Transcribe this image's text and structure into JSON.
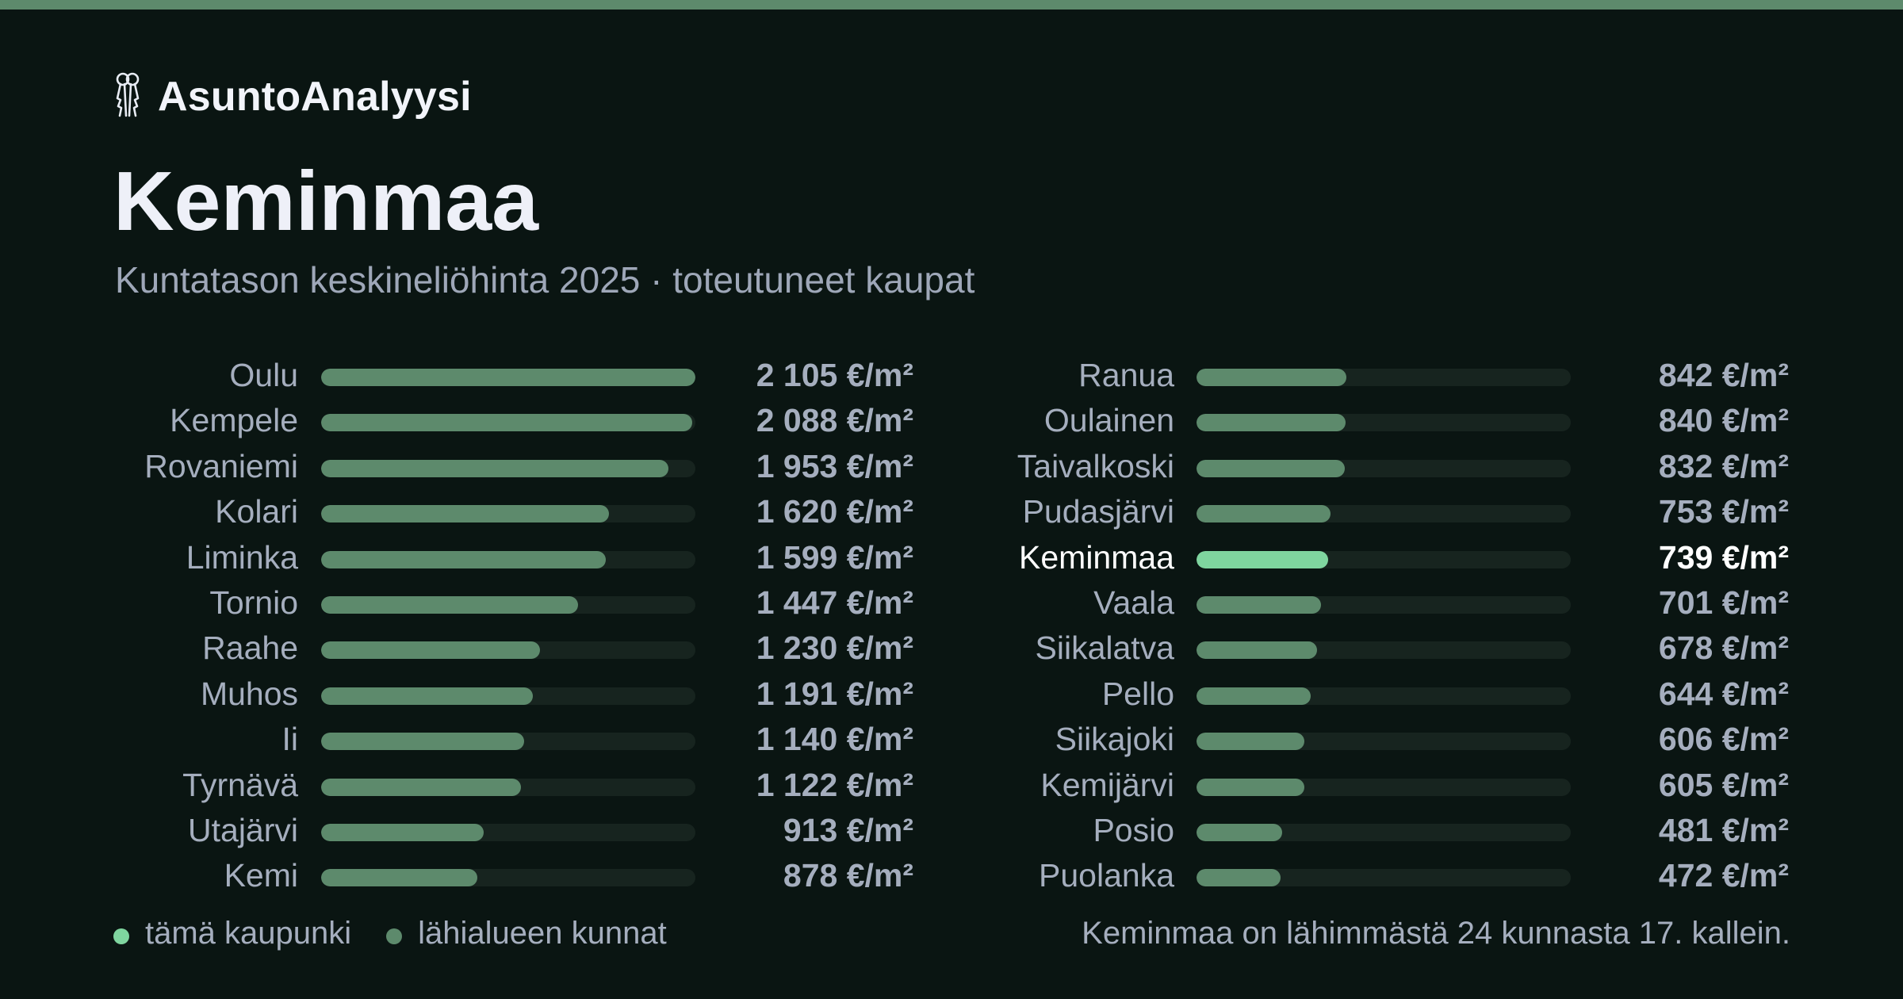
{
  "brand": {
    "name": "AsuntoAnalyysi",
    "icon": "keys-icon"
  },
  "header": {
    "title": "Keminmaa",
    "subtitle": "Kuntatason keskineliöhinta 2025 · toteutuneet kaupat"
  },
  "colors": {
    "accent": "#7fd59f",
    "bar": "#5d8a6c",
    "track": "#17241f",
    "background": "#0a1512",
    "topbar": "#5d8a6c"
  },
  "chart_data": {
    "type": "bar",
    "orientation": "horizontal",
    "unit": "€/m²",
    "max": 2105,
    "highlight": "Keminmaa",
    "categories": [
      "Oulu",
      "Kempele",
      "Rovaniemi",
      "Kolari",
      "Liminka",
      "Tornio",
      "Raahe",
      "Muhos",
      "Ii",
      "Tyrnävä",
      "Utajärvi",
      "Kemi",
      "Ranua",
      "Oulainen",
      "Taivalkoski",
      "Pudasjärvi",
      "Keminmaa",
      "Vaala",
      "Siikalatva",
      "Pello",
      "Siikajoki",
      "Kemijärvi",
      "Posio",
      "Puolanka"
    ],
    "values": [
      2105,
      2088,
      1953,
      1620,
      1599,
      1447,
      1230,
      1191,
      1140,
      1122,
      913,
      878,
      842,
      840,
      832,
      753,
      739,
      701,
      678,
      644,
      606,
      605,
      481,
      472
    ],
    "labels": [
      "2 105 €/m²",
      "2 088 €/m²",
      "1 953 €/m²",
      "1 620 €/m²",
      "1 599 €/m²",
      "1 447 €/m²",
      "1 230 €/m²",
      "1 191 €/m²",
      "1 140 €/m²",
      "1 122 €/m²",
      "913 €/m²",
      "878 €/m²",
      "842 €/m²",
      "840 €/m²",
      "832 €/m²",
      "753 €/m²",
      "739 €/m²",
      "701 €/m²",
      "678 €/m²",
      "644 €/m²",
      "606 €/m²",
      "605 €/m²",
      "481 €/m²",
      "472 €/m²"
    ]
  },
  "legend": {
    "this_city": "tämä kaupunki",
    "nearby": "lähialueen kunnat"
  },
  "note": "Keminmaa on lähimmästä 24 kunnasta 17. kallein."
}
